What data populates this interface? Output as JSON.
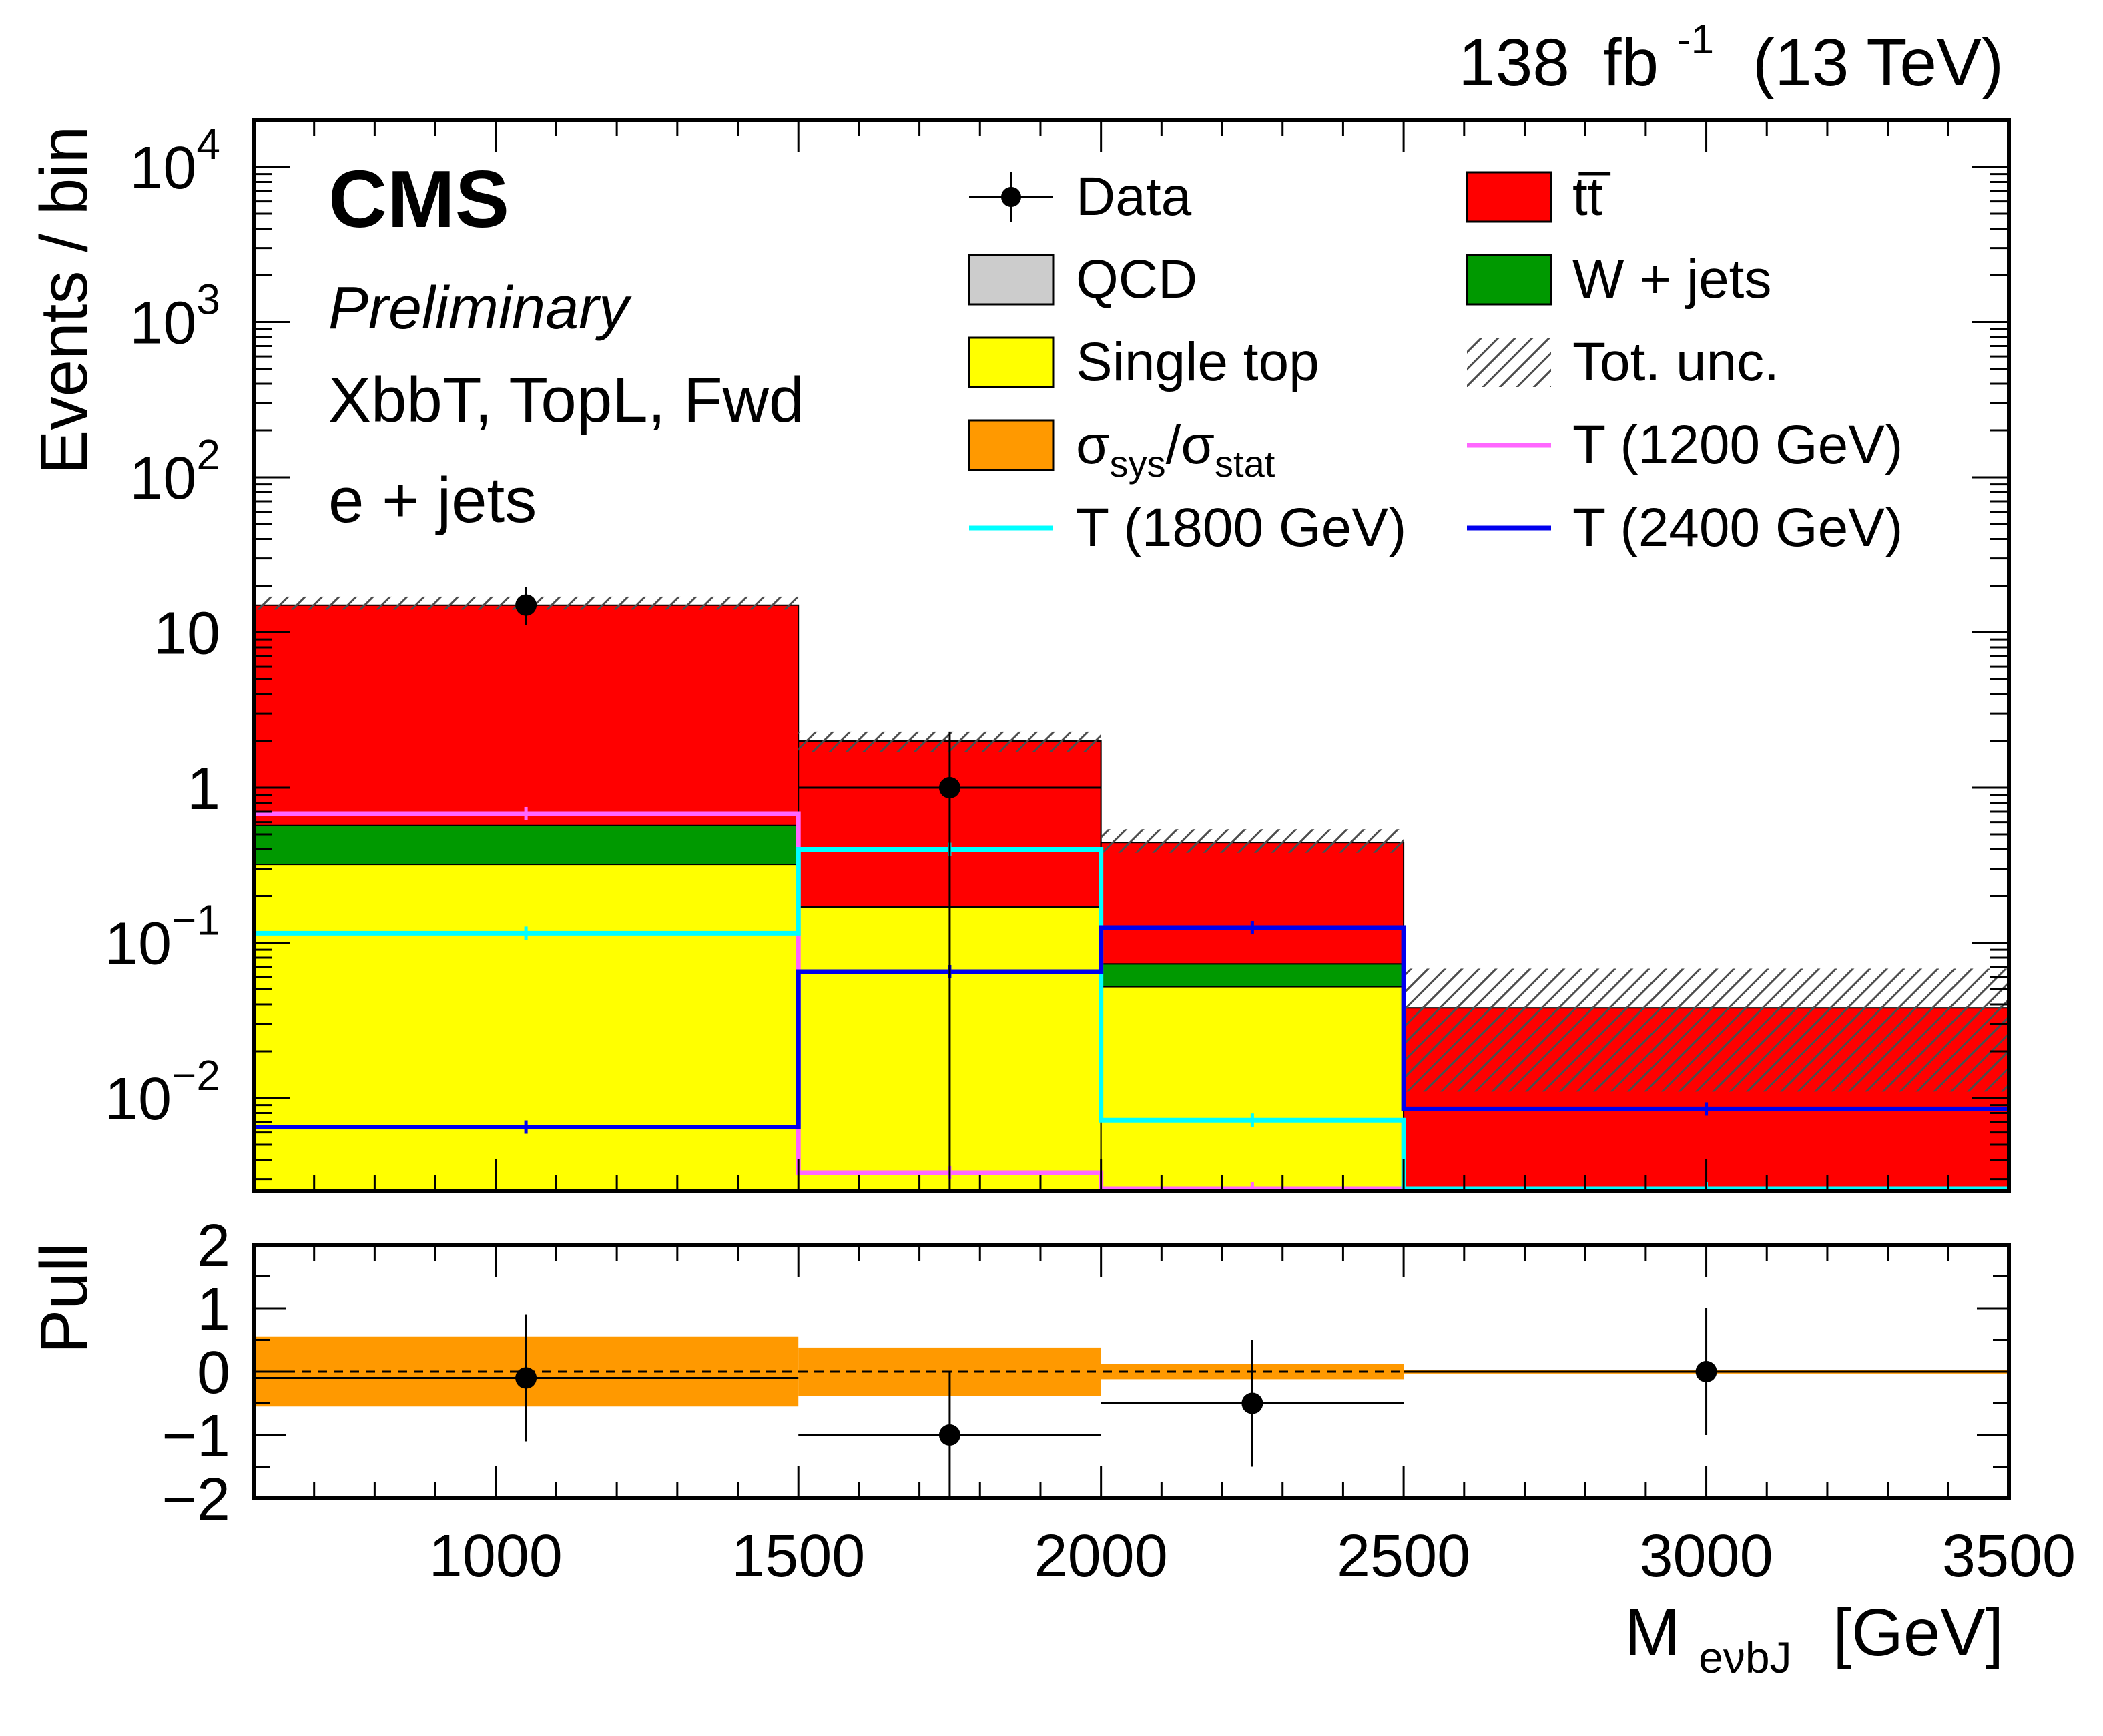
{
  "header": {
    "lumi": "138",
    "lumi_unit": "fb",
    "lumi_exp": "-1",
    "energy": "(13 TeV)"
  },
  "labels": {
    "experiment": "CMS",
    "status": "Preliminary",
    "category": "XbbT, TopL, Fwd",
    "channel": "e + jets"
  },
  "colors": {
    "ttbar": "#ff0000",
    "wjets": "#009900",
    "single_top": "#ffff00",
    "qcd": "#cccccc",
    "ratio_band": "#ff9900",
    "signal_1200": "#ff66ff",
    "signal_1800": "#00ffff",
    "signal_2400": "#0000ee",
    "data": "#000000"
  },
  "legend": [
    {
      "key": "data",
      "label": "Data",
      "style": "marker"
    },
    {
      "key": "ttbar",
      "label": "tt̅",
      "style": "box"
    },
    {
      "key": "qcd",
      "label": "QCD",
      "style": "box"
    },
    {
      "key": "wjets",
      "label": "W + jets",
      "style": "box"
    },
    {
      "key": "single_top",
      "label": "Single top",
      "style": "box"
    },
    {
      "key": "unc",
      "label": "Tot. unc.",
      "style": "hatch"
    },
    {
      "key": "ratio_band",
      "label_main": "σ",
      "label_sub1": "sys",
      "label_mid": "/σ",
      "label_sub2": "stat",
      "style": "box"
    },
    {
      "key": "signal_1200",
      "label": "T (1200 GeV)",
      "style": "line"
    },
    {
      "key": "signal_1800",
      "label": "T (1800 GeV)",
      "style": "line"
    },
    {
      "key": "signal_2400",
      "label": "T (2400 GeV)",
      "style": "line"
    }
  ],
  "chart_data": [
    {
      "type": "bar",
      "panel": "main",
      "stacked": true,
      "ylabel": "Events / bin",
      "log_y": true,
      "xlim": [
        600,
        3500
      ],
      "ylim": [
        0.0025,
        20000
      ],
      "bin_edges": [
        600,
        1500,
        2000,
        2500,
        3500
      ],
      "y_ticks": [
        {
          "value": 0.01,
          "base": "10",
          "exp": "−2"
        },
        {
          "value": 0.1,
          "base": "10",
          "exp": "−1"
        },
        {
          "value": 1,
          "base": "1",
          "exp": ""
        },
        {
          "value": 10,
          "base": "10",
          "exp": ""
        },
        {
          "value": 100,
          "base": "10",
          "exp": "2"
        },
        {
          "value": 1000,
          "base": "10",
          "exp": "3"
        },
        {
          "value": 10000,
          "base": "10",
          "exp": "4"
        }
      ],
      "stack": [
        {
          "key": "single_top",
          "name": "Single top",
          "values": [
            0.32,
            0.17,
            0.052,
            0.0
          ]
        },
        {
          "key": "wjets",
          "name": "W + jets",
          "values": [
            0.25,
            0.0,
            0.021,
            0.0
          ]
        },
        {
          "key": "qcd",
          "name": "QCD",
          "values": [
            0.0,
            0.0,
            0.0,
            0.0
          ]
        },
        {
          "key": "ttbar",
          "name": "tt̅",
          "values": [
            14.4,
            1.83,
            0.37,
            0.038
          ]
        }
      ],
      "total_unc": [
        {
          "lo": 14.0,
          "hi": 17.0
        },
        {
          "lo": 1.7,
          "hi": 2.3
        },
        {
          "lo": 0.38,
          "hi": 0.54
        },
        {
          "lo": 0.011,
          "hi": 0.068
        }
      ],
      "data_points": [
        {
          "x": 1050,
          "y": 15,
          "ylo": 11.2,
          "yhi": 19.6
        },
        {
          "x": 1750,
          "y": 1,
          "ylo": 0.0026,
          "yhi": 2.3
        }
      ],
      "signals": [
        {
          "key": "signal_1200",
          "name": "T (1200 GeV)",
          "values": [
            0.68,
            0.0033,
            0.0026,
            0.0025
          ]
        },
        {
          "key": "signal_1800",
          "name": "T (1800 GeV)",
          "values": [
            0.115,
            0.4,
            0.0072,
            0.0026
          ]
        },
        {
          "key": "signal_2400",
          "name": "T (2400 GeV)",
          "values": [
            0.0065,
            0.065,
            0.125,
            0.0085
          ]
        }
      ]
    },
    {
      "type": "scatter",
      "panel": "pull",
      "ylabel": "Pull",
      "xlabel_main": "M",
      "xlabel_sub": "eνbJ",
      "xlabel_unit": "[GeV]",
      "xlim": [
        600,
        3500
      ],
      "ylim": [
        -2,
        2
      ],
      "x_ticks": [
        1000,
        1500,
        2000,
        2500,
        3000,
        3500
      ],
      "y_ticks": [
        {
          "value": 2,
          "label": "2"
        },
        {
          "value": 1,
          "label": "1"
        },
        {
          "value": 0,
          "label": "0"
        },
        {
          "value": -1,
          "label": "−1"
        },
        {
          "value": -2,
          "label": "−2"
        }
      ],
      "band": [
        {
          "x0": 600,
          "x1": 1500,
          "lo": -0.55,
          "hi": 0.55
        },
        {
          "x0": 1500,
          "x1": 2000,
          "lo": -0.38,
          "hi": 0.38
        },
        {
          "x0": 2000,
          "x1": 2500,
          "lo": -0.12,
          "hi": 0.12
        },
        {
          "x0": 2500,
          "x1": 3500,
          "lo": -0.03,
          "hi": 0.03
        }
      ],
      "points": [
        {
          "x": 1050,
          "x0": 600,
          "x1": 1500,
          "y": -0.1,
          "ylo": -1.1,
          "yhi": 0.9
        },
        {
          "x": 1750,
          "x0": 1500,
          "x1": 2000,
          "y": -1.0,
          "ylo": -2.0,
          "yhi": 0.0
        },
        {
          "x": 2250,
          "x0": 2000,
          "x1": 2500,
          "y": -0.5,
          "ylo": -1.5,
          "yhi": 0.5
        },
        {
          "x": 3000,
          "x0": 2500,
          "x1": 3500,
          "y": 0.0,
          "ylo": -1.0,
          "yhi": 1.0
        }
      ]
    }
  ]
}
